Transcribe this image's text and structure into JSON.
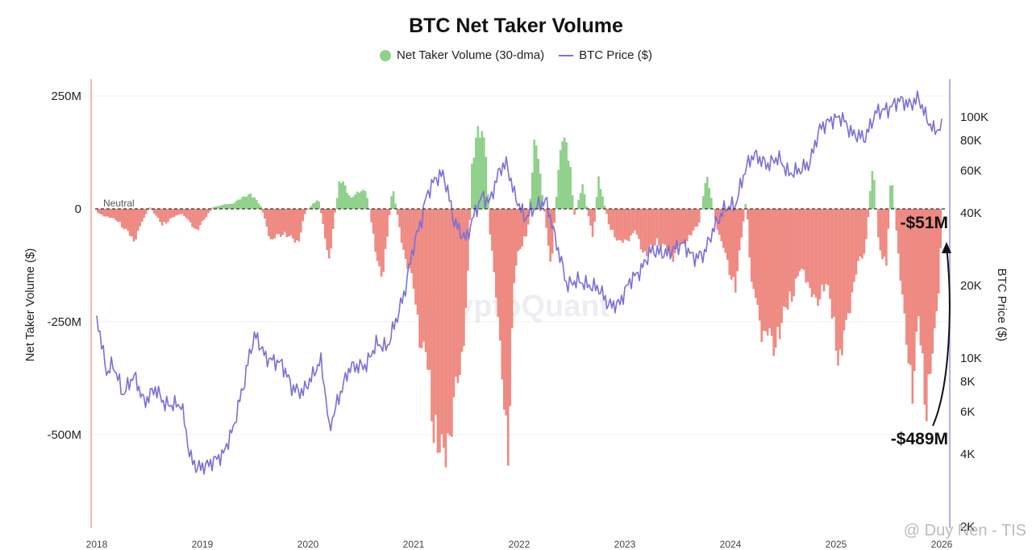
{
  "chart_data": {
    "type": "bar+line",
    "title": "BTC Net Taker Volume",
    "legend": [
      {
        "label": "Net Taker Volume (30-dma)",
        "color": "#8fd18a",
        "marker": "dot"
      },
      {
        "label": "BTC Price ($)",
        "color": "#7b6fd6",
        "marker": "line"
      }
    ],
    "legend_placement": "top-center",
    "ylabel_left": "Net Taker Volume ($)",
    "ylabel_right": "BTC Price ($)",
    "ylim_left": [
      -700,
      280
    ],
    "ylim_right_log": [
      2000,
      160000
    ],
    "left_ticks": [
      {
        "value": 250,
        "label": "250M"
      },
      {
        "value": 0,
        "label": "0"
      },
      {
        "value": -250,
        "label": "-250M"
      },
      {
        "value": -500,
        "label": "-500M"
      }
    ],
    "right_ticks": [
      {
        "value": 100000,
        "label": "100K"
      },
      {
        "value": 80000,
        "label": "80K"
      },
      {
        "value": 60000,
        "label": "60K"
      },
      {
        "value": 40000,
        "label": "40K"
      },
      {
        "value": 20000,
        "label": "20K"
      },
      {
        "value": 10000,
        "label": "10K"
      },
      {
        "value": 8000,
        "label": "8K"
      },
      {
        "value": 6000,
        "label": "6K"
      },
      {
        "value": 4000,
        "label": "4K"
      },
      {
        "value": 2000,
        "label": "2K"
      }
    ],
    "x_ticks": [
      "2018",
      "2019",
      "2020",
      "2021",
      "2022",
      "2023",
      "2024",
      "2025",
      "2026"
    ],
    "neutral_label": "Neutral",
    "annotations": [
      {
        "text": "-$51M",
        "date": 2025.95,
        "value": -51
      },
      {
        "text": "-$489M",
        "date": 2025.95,
        "value": -489
      }
    ],
    "watermark": "CryptoQuant",
    "credit": "@ Duy Nen - TIS",
    "colors": {
      "positive": "#8fd18a",
      "negative": "#ee8a82",
      "price": "#7b6fd6",
      "neutral": "#333333"
    },
    "net_taker_volume_keypoints": [
      [
        2018.0,
        -10
      ],
      [
        2018.2,
        -30
      ],
      [
        2018.35,
        -80
      ],
      [
        2018.5,
        5
      ],
      [
        2018.62,
        -40
      ],
      [
        2018.8,
        -10
      ],
      [
        2018.95,
        -55
      ],
      [
        2019.1,
        5
      ],
      [
        2019.3,
        15
      ],
      [
        2019.45,
        40
      ],
      [
        2019.55,
        10
      ],
      [
        2019.65,
        -80
      ],
      [
        2019.78,
        -60
      ],
      [
        2019.9,
        -90
      ],
      [
        2019.98,
        -5
      ],
      [
        2020.1,
        25
      ],
      [
        2020.2,
        -130
      ],
      [
        2020.3,
        80
      ],
      [
        2020.4,
        30
      ],
      [
        2020.55,
        50
      ],
      [
        2020.7,
        -200
      ],
      [
        2020.8,
        60
      ],
      [
        2020.9,
        -100
      ],
      [
        2021.0,
        -200
      ],
      [
        2021.05,
        -300
      ],
      [
        2021.15,
        -450
      ],
      [
        2021.25,
        -650
      ],
      [
        2021.35,
        -550
      ],
      [
        2021.45,
        -400
      ],
      [
        2021.52,
        -150
      ],
      [
        2021.55,
        120
      ],
      [
        2021.62,
        200
      ],
      [
        2021.68,
        180
      ],
      [
        2021.72,
        -50
      ],
      [
        2021.78,
        -200
      ],
      [
        2021.85,
        -500
      ],
      [
        2021.9,
        -580
      ],
      [
        2021.95,
        -200
      ],
      [
        2022.0,
        -100
      ],
      [
        2022.08,
        -60
      ],
      [
        2022.15,
        190
      ],
      [
        2022.2,
        80
      ],
      [
        2022.3,
        -150
      ],
      [
        2022.4,
        200
      ],
      [
        2022.48,
        120
      ],
      [
        2022.52,
        -20
      ],
      [
        2022.6,
        60
      ],
      [
        2022.7,
        -80
      ],
      [
        2022.75,
        80
      ],
      [
        2022.85,
        -40
      ],
      [
        2022.95,
        -90
      ],
      [
        2023.1,
        -60
      ],
      [
        2023.2,
        -120
      ],
      [
        2023.3,
        -80
      ],
      [
        2023.45,
        -120
      ],
      [
        2023.55,
        -90
      ],
      [
        2023.7,
        -40
      ],
      [
        2023.78,
        90
      ],
      [
        2023.85,
        -20
      ],
      [
        2023.95,
        -120
      ],
      [
        2024.05,
        -200
      ],
      [
        2024.15,
        30
      ],
      [
        2024.2,
        -200
      ],
      [
        2024.3,
        -300
      ],
      [
        2024.4,
        -350
      ],
      [
        2024.5,
        -280
      ],
      [
        2024.6,
        -200
      ],
      [
        2024.7,
        -150
      ],
      [
        2024.8,
        -250
      ],
      [
        2024.9,
        -180
      ],
      [
        2024.98,
        -300
      ],
      [
        2025.05,
        -400
      ],
      [
        2025.12,
        -250
      ],
      [
        2025.2,
        -150
      ],
      [
        2025.28,
        -100
      ],
      [
        2025.35,
        130
      ],
      [
        2025.4,
        -80
      ],
      [
        2025.48,
        -150
      ],
      [
        2025.52,
        100
      ],
      [
        2025.58,
        -80
      ],
      [
        2025.65,
        -300
      ],
      [
        2025.72,
        -450
      ],
      [
        2025.78,
        -300
      ],
      [
        2025.85,
        -489
      ],
      [
        2025.92,
        -380
      ],
      [
        2025.97,
        -200
      ],
      [
        2026.0,
        -51
      ]
    ],
    "btc_price_keypoints": [
      [
        2018.0,
        15000
      ],
      [
        2018.05,
        11000
      ],
      [
        2018.1,
        8500
      ],
      [
        2018.15,
        9500
      ],
      [
        2018.25,
        7000
      ],
      [
        2018.35,
        8500
      ],
      [
        2018.45,
        6500
      ],
      [
        2018.55,
        7500
      ],
      [
        2018.65,
        6400
      ],
      [
        2018.8,
        6400
      ],
      [
        2018.88,
        3900
      ],
      [
        2018.95,
        3500
      ],
      [
        2019.05,
        3600
      ],
      [
        2019.2,
        4000
      ],
      [
        2019.3,
        5200
      ],
      [
        2019.4,
        8000
      ],
      [
        2019.45,
        10500
      ],
      [
        2019.5,
        12500
      ],
      [
        2019.6,
        10000
      ],
      [
        2019.75,
        9500
      ],
      [
        2019.85,
        7500
      ],
      [
        2019.95,
        7200
      ],
      [
        2020.05,
        8500
      ],
      [
        2020.12,
        9800
      ],
      [
        2020.2,
        5000
      ],
      [
        2020.3,
        7000
      ],
      [
        2020.4,
        9200
      ],
      [
        2020.55,
        9300
      ],
      [
        2020.65,
        11500
      ],
      [
        2020.75,
        11000
      ],
      [
        2020.85,
        15000
      ],
      [
        2020.92,
        19000
      ],
      [
        2021.0,
        29000
      ],
      [
        2021.08,
        38000
      ],
      [
        2021.12,
        47000
      ],
      [
        2021.2,
        55000
      ],
      [
        2021.28,
        58000
      ],
      [
        2021.38,
        37000
      ],
      [
        2021.45,
        33000
      ],
      [
        2021.5,
        31000
      ],
      [
        2021.58,
        40000
      ],
      [
        2021.65,
        47000
      ],
      [
        2021.72,
        44000
      ],
      [
        2021.82,
        61000
      ],
      [
        2021.88,
        64000
      ],
      [
        2021.95,
        48000
      ],
      [
        2022.05,
        38000
      ],
      [
        2022.15,
        42000
      ],
      [
        2022.25,
        45000
      ],
      [
        2022.35,
        30000
      ],
      [
        2022.45,
        20000
      ],
      [
        2022.55,
        21000
      ],
      [
        2022.65,
        20000
      ],
      [
        2022.75,
        19500
      ],
      [
        2022.85,
        16500
      ],
      [
        2022.95,
        16800
      ],
      [
        2023.05,
        21000
      ],
      [
        2023.15,
        23000
      ],
      [
        2023.25,
        28000
      ],
      [
        2023.4,
        27000
      ],
      [
        2023.55,
        30000
      ],
      [
        2023.65,
        26000
      ],
      [
        2023.75,
        27000
      ],
      [
        2023.85,
        35000
      ],
      [
        2023.95,
        42000
      ],
      [
        2024.05,
        43000
      ],
      [
        2024.15,
        62000
      ],
      [
        2024.22,
        70000
      ],
      [
        2024.35,
        63000
      ],
      [
        2024.45,
        68000
      ],
      [
        2024.55,
        58000
      ],
      [
        2024.65,
        60000
      ],
      [
        2024.75,
        64000
      ],
      [
        2024.85,
        90000
      ],
      [
        2024.95,
        97000
      ],
      [
        2025.05,
        100000
      ],
      [
        2025.15,
        85000
      ],
      [
        2025.28,
        82000
      ],
      [
        2025.38,
        105000
      ],
      [
        2025.5,
        108000
      ],
      [
        2025.6,
        118000
      ],
      [
        2025.7,
        112000
      ],
      [
        2025.78,
        120000
      ],
      [
        2025.85,
        100000
      ],
      [
        2025.92,
        88000
      ],
      [
        2026.0,
        90000
      ]
    ]
  }
}
